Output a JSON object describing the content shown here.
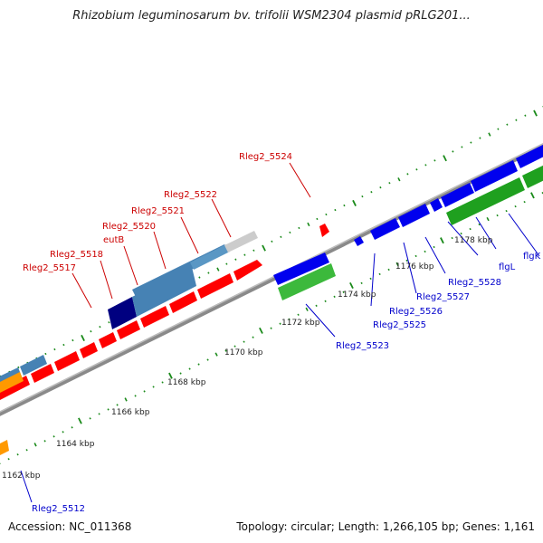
{
  "title": "Rhizobium leguminosarum bv. trifolii WSM2304 plasmid pRLG201...",
  "footer": {
    "accession": "Accession: NC_011368",
    "topology": "Topology: circular; Length: 1,266,105 bp; Genes: 1,161"
  },
  "colors": {
    "backbone": "#8a8a8a",
    "tick": "#1a8a1a",
    "forward_red": "#ff0000",
    "reverse_blue": "#0000ee",
    "label_red": "#cc0000",
    "label_blue": "#0000cc",
    "steelblue": "#4682b4",
    "navy": "#000080",
    "green": "#1fa01f",
    "lightgreen": "#3cb93c",
    "orange": "#ff9900",
    "gray": "#cccccc"
  },
  "scale_labels": [
    "1162 kbp",
    "1164 kbp",
    "1166 kbp",
    "1168 kbp",
    "1170 kbp",
    "1172 kbp",
    "1174 kbp",
    "1176 kbp",
    "1178 kbp"
  ],
  "gene_labels_top": [
    "Rleg2_5524",
    "Rleg2_5522",
    "Rleg2_5521",
    "Rleg2_5520",
    "eutB",
    "Rleg2_5518",
    "Rleg2_5517"
  ],
  "gene_labels_bottom": [
    "flgK",
    "flgL",
    "Rleg2_5528",
    "Rleg2_5527",
    "Rleg2_5526",
    "Rleg2_5525",
    "Rleg2_5523",
    "Rleg2_5512"
  ]
}
